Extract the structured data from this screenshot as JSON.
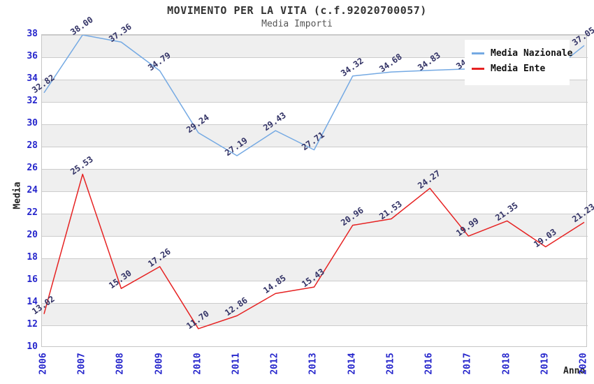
{
  "chart_data": {
    "type": "line",
    "title": "MOVIMENTO PER LA VITA (c.f.92020700057)",
    "subtitle": "Media Importi",
    "xlabel": "Anno",
    "ylabel": "Media",
    "x": [
      "2006",
      "2007",
      "2008",
      "2009",
      "2010",
      "2011",
      "2012",
      "2013",
      "2014",
      "2015",
      "2016",
      "2017",
      "2018",
      "2019",
      "2020"
    ],
    "ylim": [
      10,
      38
    ],
    "ytick_step": 2,
    "grid": "horizontal-bands",
    "legend_position": "top-right",
    "series": [
      {
        "name": "Media Nazionale",
        "color": "#74a9e3",
        "values": [
          32.82,
          38.0,
          37.36,
          34.79,
          29.24,
          27.19,
          29.43,
          27.71,
          34.32,
          34.68,
          34.83,
          34.95,
          35.2,
          34.3,
          37.05
        ]
      },
      {
        "name": "Media Ente",
        "color": "#e62222",
        "values": [
          13.02,
          25.53,
          15.3,
          17.26,
          11.7,
          12.86,
          14.85,
          15.43,
          20.96,
          21.53,
          24.27,
          19.99,
          21.35,
          19.03,
          21.23
        ]
      }
    ],
    "labels_hidden_by_legend_indices": [
      11,
      12,
      13
    ],
    "colors": {
      "tick_label": "#2626cc",
      "data_label": "#333366",
      "gridline": "#cccccc",
      "plot_border": "#c6c6c6",
      "band_gray": "#efefef",
      "band_white": "#ffffff",
      "title": "#333333",
      "subtitle": "#555555"
    }
  }
}
